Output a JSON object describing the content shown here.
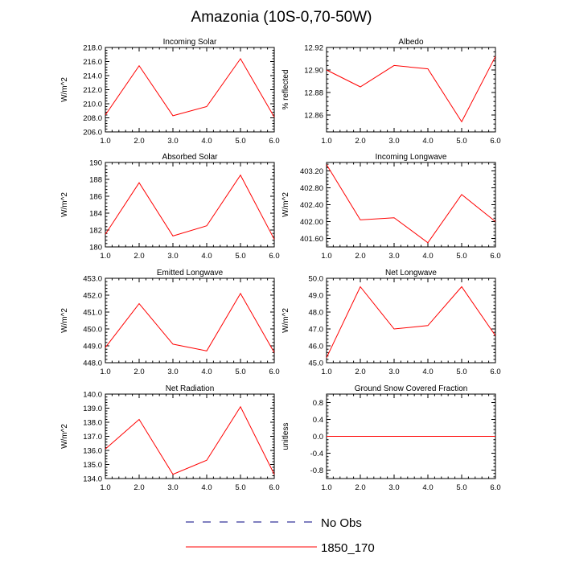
{
  "title": "Amazonia (10S-0,70-50W)",
  "colors": {
    "model": "#ff0000",
    "obs": "#000080",
    "axis": "#000000"
  },
  "legend": [
    {
      "label": "No Obs",
      "style": "dashed",
      "color": "#000080"
    },
    {
      "label": "1850_170",
      "style": "solid",
      "color": "#ff0000"
    }
  ],
  "chart_data": [
    {
      "type": "line",
      "title": "Incoming Solar",
      "ylabel": "W/m^2",
      "x": [
        1,
        2,
        3,
        4,
        5,
        6
      ],
      "xlim": [
        1,
        6
      ],
      "xticks": [
        "1.0",
        "2.0",
        "3.0",
        "4.0",
        "5.0",
        "6.0"
      ],
      "ylim": [
        206,
        218
      ],
      "yticks": [
        206,
        208,
        210,
        212,
        214,
        216,
        218
      ],
      "yticklabels": [
        "206.0",
        "208.0",
        "210.0",
        "212.0",
        "214.0",
        "216.0",
        "218.0"
      ],
      "ylabel_side": "left",
      "series": [
        {
          "name": "1850_170",
          "values": [
            208.4,
            215.4,
            208.3,
            209.6,
            216.4,
            208.1
          ]
        }
      ]
    },
    {
      "type": "line",
      "title": "Albedo",
      "ylabel": "% reflected",
      "x": [
        1,
        2,
        3,
        4,
        5,
        6
      ],
      "xlim": [
        1,
        6
      ],
      "xticks": [
        "1.0",
        "2.0",
        "3.0",
        "4.0",
        "5.0",
        "6.0"
      ],
      "ylim": [
        12.845,
        12.92
      ],
      "yticks": [
        12.86,
        12.88,
        12.9,
        12.92
      ],
      "yticklabels": [
        "12.86",
        "12.88",
        "12.90",
        "12.92"
      ],
      "ylabel_side": "right",
      "series": [
        {
          "name": "1850_170",
          "values": [
            12.9,
            12.885,
            12.904,
            12.901,
            12.854,
            12.912
          ]
        }
      ]
    },
    {
      "type": "line",
      "title": "Absorbed Solar",
      "ylabel": "W/m^2",
      "x": [
        1,
        2,
        3,
        4,
        5,
        6
      ],
      "xlim": [
        1,
        6
      ],
      "xticks": [
        "1.0",
        "2.0",
        "3.0",
        "4.0",
        "5.0",
        "6.0"
      ],
      "ylim": [
        180,
        190
      ],
      "yticks": [
        180,
        182,
        184,
        186,
        188,
        190
      ],
      "yticklabels": [
        "180",
        "182",
        "184",
        "186",
        "188",
        "190"
      ],
      "ylabel_side": "left",
      "series": [
        {
          "name": "1850_170",
          "values": [
            181.5,
            187.6,
            181.3,
            182.5,
            188.5,
            180.9
          ]
        }
      ]
    },
    {
      "type": "line",
      "title": "Incoming Longwave",
      "ylabel": "W/m^2",
      "x": [
        1,
        2,
        3,
        4,
        5,
        6
      ],
      "xlim": [
        1,
        6
      ],
      "xticks": [
        "1.0",
        "2.0",
        "3.0",
        "4.0",
        "5.0",
        "6.0"
      ],
      "ylim": [
        401.4,
        403.4
      ],
      "yticks": [
        401.6,
        402.0,
        402.4,
        402.8,
        403.2
      ],
      "yticklabels": [
        "401.60",
        "402.00",
        "402.40",
        "402.80",
        "403.20"
      ],
      "ylabel_side": "right",
      "series": [
        {
          "name": "1850_170",
          "values": [
            403.35,
            402.04,
            402.09,
            401.5,
            402.64,
            402.0
          ]
        }
      ]
    },
    {
      "type": "line",
      "title": "Emitted Longwave",
      "ylabel": "W/m^2",
      "x": [
        1,
        2,
        3,
        4,
        5,
        6
      ],
      "xlim": [
        1,
        6
      ],
      "xticks": [
        "1.0",
        "2.0",
        "3.0",
        "4.0",
        "5.0",
        "6.0"
      ],
      "ylim": [
        448,
        453
      ],
      "yticks": [
        448,
        449,
        450,
        451,
        452,
        453
      ],
      "yticklabels": [
        "448.0",
        "449.0",
        "450.0",
        "451.0",
        "452.0",
        "453.0"
      ],
      "ylabel_side": "left",
      "series": [
        {
          "name": "1850_170",
          "values": [
            448.9,
            451.5,
            449.1,
            448.7,
            452.1,
            448.6
          ]
        }
      ]
    },
    {
      "type": "line",
      "title": "Net Longwave",
      "ylabel": "W/m^2",
      "x": [
        1,
        2,
        3,
        4,
        5,
        6
      ],
      "xlim": [
        1,
        6
      ],
      "xticks": [
        "1.0",
        "2.0",
        "3.0",
        "4.0",
        "5.0",
        "6.0"
      ],
      "ylim": [
        45,
        50
      ],
      "yticks": [
        45,
        46,
        47,
        48,
        49,
        50
      ],
      "yticklabels": [
        "45.0",
        "46.0",
        "47.0",
        "48.0",
        "49.0",
        "50.0"
      ],
      "ylabel_side": "right",
      "series": [
        {
          "name": "1850_170",
          "values": [
            45.3,
            49.5,
            47.0,
            47.2,
            49.5,
            46.6
          ]
        }
      ]
    },
    {
      "type": "line",
      "title": "Net Radiation",
      "ylabel": "W/m^2",
      "x": [
        1,
        2,
        3,
        4,
        5,
        6
      ],
      "xlim": [
        1,
        6
      ],
      "xticks": [
        "1.0",
        "2.0",
        "3.0",
        "4.0",
        "5.0",
        "6.0"
      ],
      "ylim": [
        134,
        140
      ],
      "yticks": [
        134,
        135,
        136,
        137,
        138,
        139,
        140
      ],
      "yticklabels": [
        "134.0",
        "135.0",
        "136.0",
        "137.0",
        "138.0",
        "139.0",
        "140.0"
      ],
      "ylabel_side": "left",
      "series": [
        {
          "name": "1850_170",
          "values": [
            136.1,
            138.2,
            134.3,
            135.3,
            139.1,
            134.3
          ]
        }
      ]
    },
    {
      "type": "line",
      "title": "Ground Snow Covered Fraction",
      "ylabel": "unitless",
      "x": [
        1,
        2,
        3,
        4,
        5,
        6
      ],
      "xlim": [
        1,
        6
      ],
      "xticks": [
        "1.0",
        "2.0",
        "3.0",
        "4.0",
        "5.0",
        "6.0"
      ],
      "ylim": [
        -1,
        1
      ],
      "yticks": [
        -0.8,
        -0.4,
        0,
        0.4,
        0.8
      ],
      "yticklabels": [
        "-0.8",
        "-0.4",
        "0.0",
        "0.4",
        "0.8"
      ],
      "ylabel_side": "right",
      "series": [
        {
          "name": "1850_170",
          "values": [
            0,
            0,
            0,
            0,
            0,
            0
          ]
        }
      ]
    }
  ]
}
